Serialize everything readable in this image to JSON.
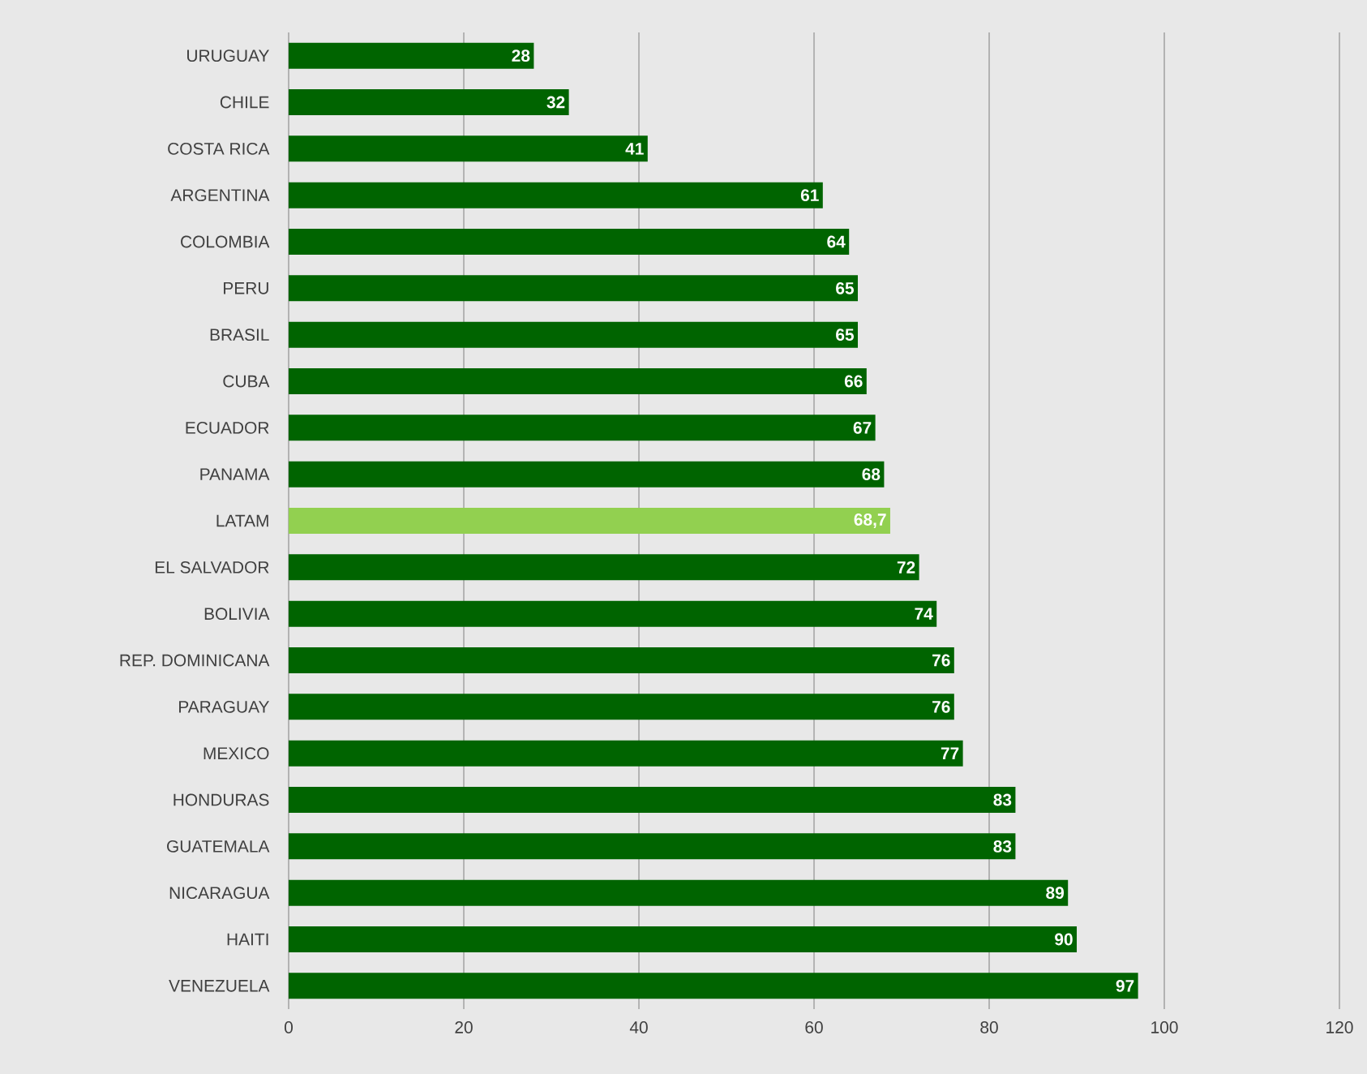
{
  "chart_data": {
    "type": "bar",
    "orientation": "horizontal",
    "categories": [
      "URUGUAY",
      "CHILE",
      "COSTA RICA",
      "ARGENTINA",
      "COLOMBIA",
      "PERU",
      "BRASIL",
      "CUBA",
      "ECUADOR",
      "PANAMA",
      "LATAM",
      "EL SALVADOR",
      "BOLIVIA",
      "REP. DOMINICANA",
      "PARAGUAY",
      "MEXICO",
      "HONDURAS",
      "GUATEMALA",
      "NICARAGUA",
      "HAITI",
      "VENEZUELA"
    ],
    "values": [
      28,
      32,
      41,
      61,
      64,
      65,
      65,
      66,
      67,
      68,
      68.7,
      72,
      74,
      76,
      76,
      77,
      83,
      83,
      89,
      90,
      97
    ],
    "value_labels": [
      "28",
      "32",
      "41",
      "61",
      "64",
      "65",
      "65",
      "66",
      "67",
      "68",
      "68,7",
      "72",
      "74",
      "76",
      "76",
      "77",
      "83",
      "83",
      "89",
      "90",
      "97"
    ],
    "colors": [
      "#006400",
      "#006400",
      "#006400",
      "#006400",
      "#006400",
      "#006400",
      "#006400",
      "#006400",
      "#006400",
      "#006400",
      "#92d050",
      "#006400",
      "#006400",
      "#006400",
      "#006400",
      "#006400",
      "#006400",
      "#006400",
      "#006400",
      "#006400",
      "#006400"
    ],
    "xlim": [
      0,
      120
    ],
    "xticks": [
      0,
      20,
      40,
      60,
      80,
      100,
      120
    ],
    "grid": "x"
  }
}
